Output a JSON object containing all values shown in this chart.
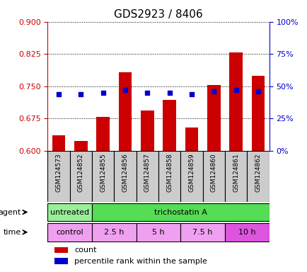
{
  "title": "GDS2923 / 8406",
  "samples": [
    "GSM124573",
    "GSM124852",
    "GSM124855",
    "GSM124856",
    "GSM124857",
    "GSM124858",
    "GSM124859",
    "GSM124860",
    "GSM124861",
    "GSM124862"
  ],
  "count_values": [
    0.636,
    0.622,
    0.679,
    0.782,
    0.694,
    0.718,
    0.653,
    0.752,
    0.828,
    0.775
  ],
  "percentile_values": [
    44,
    44,
    45,
    47,
    45,
    45,
    44,
    46,
    47,
    46
  ],
  "ylim_left": [
    0.6,
    0.9
  ],
  "ylim_right": [
    0,
    100
  ],
  "yticks_left": [
    0.6,
    0.675,
    0.75,
    0.825,
    0.9
  ],
  "yticks_right": [
    0,
    25,
    50,
    75,
    100
  ],
  "bar_color": "#cc0000",
  "dot_color": "#0000cc",
  "agent_labels": [
    {
      "text": "untreated",
      "start": 0,
      "end": 2,
      "color": "#99ee99"
    },
    {
      "text": "trichostatin A",
      "start": 2,
      "end": 10,
      "color": "#55dd55"
    }
  ],
  "time_labels": [
    {
      "text": "control",
      "start": 0,
      "end": 2,
      "color": "#f0a0f0"
    },
    {
      "text": "2.5 h",
      "start": 2,
      "end": 4,
      "color": "#f0a0f0"
    },
    {
      "text": "5 h",
      "start": 4,
      "end": 6,
      "color": "#f0a0f0"
    },
    {
      "text": "7.5 h",
      "start": 6,
      "end": 8,
      "color": "#f0a0f0"
    },
    {
      "text": "10 h",
      "start": 8,
      "end": 10,
      "color": "#dd55dd"
    }
  ],
  "legend_count_label": "count",
  "legend_percentile_label": "percentile rank within the sample",
  "grid_color": "black",
  "left_axis_color": "#cc0000",
  "right_axis_color": "#0000cc",
  "bar_width": 0.6,
  "tick_bg_color": "#cccccc",
  "background_color": "#ffffff",
  "plot_bg_color": "#ffffff"
}
